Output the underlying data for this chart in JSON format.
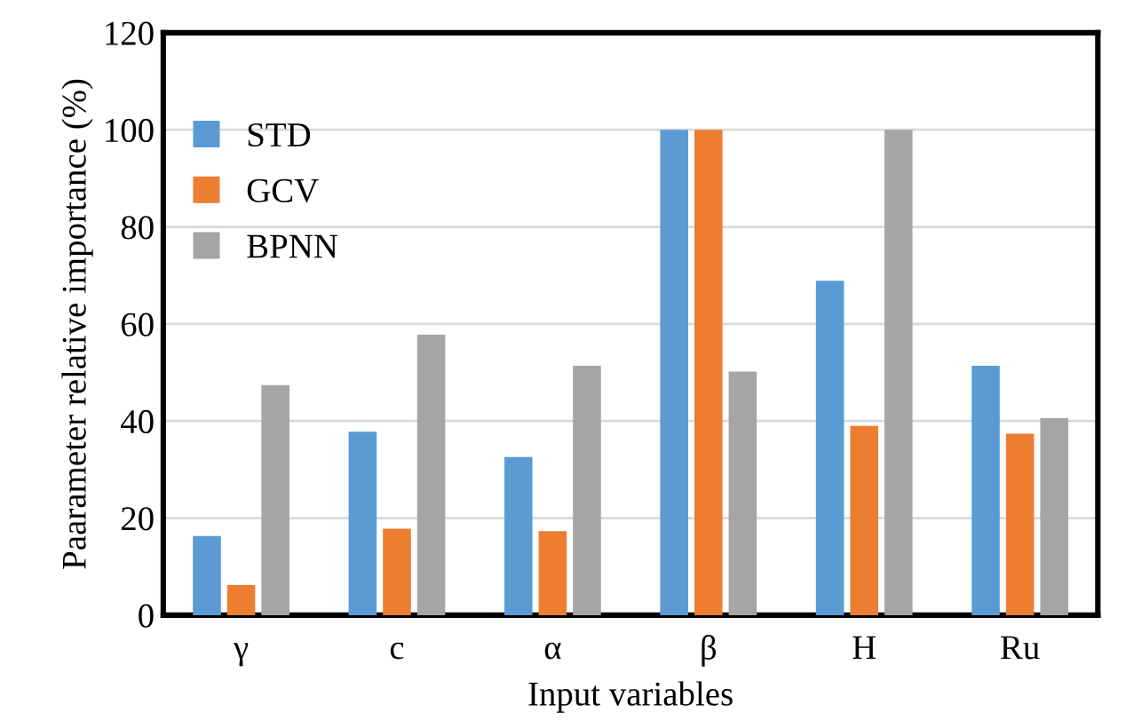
{
  "chart_data": {
    "type": "bar",
    "xlabel": "Input variables",
    "ylabel": "Paarameter relative importance (%)",
    "categories": [
      "γ",
      "c",
      "α",
      "β",
      "H",
      "Ru"
    ],
    "series": [
      {
        "name": "STD",
        "color": "#5b9bd5",
        "values": [
          16.3,
          37.8,
          32.6,
          100,
          68.9,
          51.4
        ]
      },
      {
        "name": "GCV",
        "color": "#ed7d31",
        "values": [
          6.2,
          17.8,
          17.3,
          100,
          39.0,
          37.4
        ]
      },
      {
        "name": "BPNN",
        "color": "#a5a5a5",
        "values": [
          47.4,
          57.8,
          51.4,
          50.2,
          100,
          40.6
        ]
      }
    ],
    "ylim": [
      0,
      120
    ],
    "yticks": [
      0,
      20,
      40,
      60,
      80,
      100,
      120
    ],
    "grid": "y",
    "legend": "top left"
  }
}
